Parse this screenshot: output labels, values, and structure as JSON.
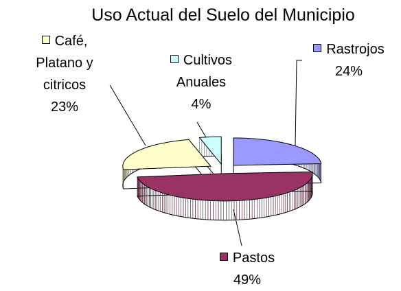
{
  "chart_data": {
    "type": "pie",
    "title": "Uso Actual del Suelo del Municipio",
    "categories": [
      "Rastrojos",
      "Pastos",
      "Café, Platano y citricos",
      "Cultivos Anuales"
    ],
    "values": [
      24,
      49,
      23,
      4
    ],
    "value_labels": [
      "24%",
      "49%",
      "23%",
      "4%"
    ],
    "colors": [
      "#9999ff",
      "#993366",
      "#ffffcc",
      "#ccffff"
    ]
  }
}
